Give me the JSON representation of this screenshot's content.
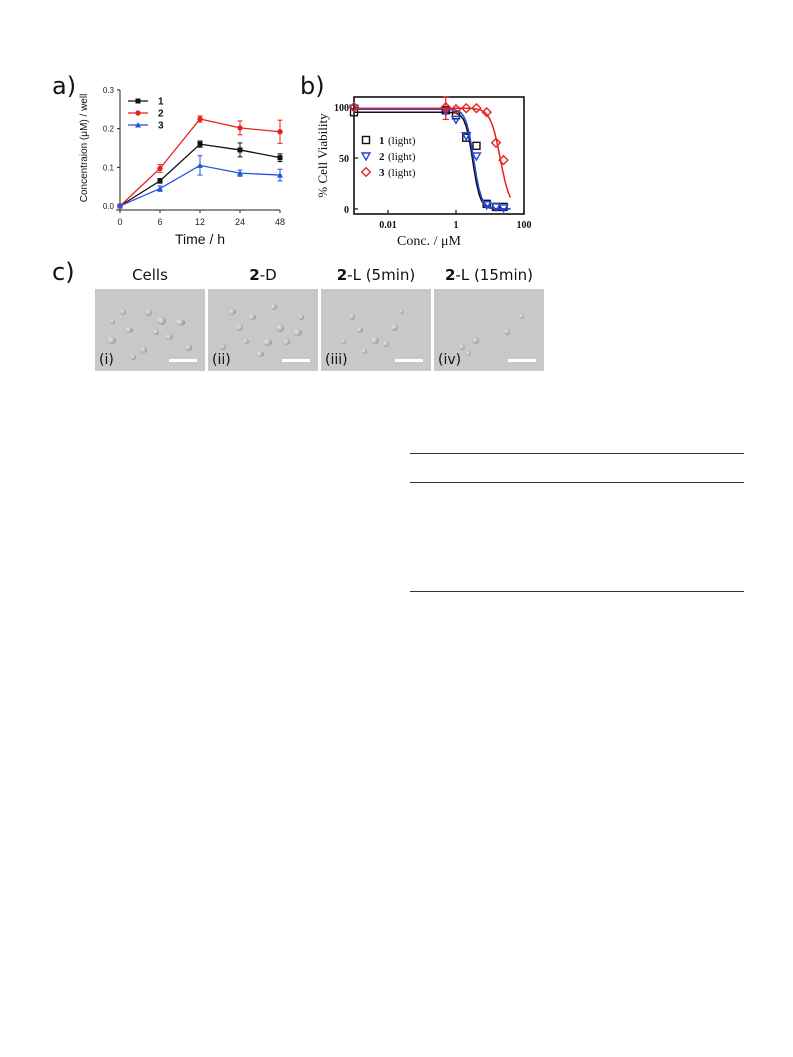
{
  "panels": {
    "a": "a)",
    "b": "b)",
    "c": "c)"
  },
  "chart_data": [
    {
      "type": "line",
      "xlabel": "Time / h",
      "ylabel": "Concentraion (μM) / well",
      "x": [
        0,
        6,
        12,
        24,
        48
      ],
      "x_ticks": [
        "0",
        "6",
        "12",
        "24",
        "48"
      ],
      "y_ticks": [
        "0.0",
        "0.1",
        "0.2",
        "0.3"
      ],
      "ylim": [
        0,
        0.3
      ],
      "legend_position": "top-left",
      "series": [
        {
          "name": "1",
          "color": "#111111",
          "values": [
            0.0,
            0.065,
            0.16,
            0.145,
            0.125
          ],
          "errors": [
            0.003,
            0.006,
            0.008,
            0.018,
            0.01
          ]
        },
        {
          "name": "2",
          "color": "#e8221e",
          "values": [
            0.0,
            0.097,
            0.225,
            0.202,
            0.192
          ],
          "errors": [
            0.003,
            0.01,
            0.008,
            0.018,
            0.03
          ]
        },
        {
          "name": "3",
          "color": "#2255dd",
          "values": [
            0.0,
            0.045,
            0.105,
            0.085,
            0.08
          ],
          "errors": [
            0.003,
            0.007,
            0.025,
            0.008,
            0.015
          ]
        }
      ]
    },
    {
      "type": "scatter",
      "xlabel": "Conc. / μM",
      "ylabel": "% Cell Viability",
      "x_scale": "log",
      "x_ticks": [
        "0.01",
        "1",
        "100"
      ],
      "y_ticks": [
        "0",
        "50",
        "100"
      ],
      "xlim": [
        0.001,
        100
      ],
      "ylim": [
        -5,
        110
      ],
      "legend_position": "center-left",
      "series": [
        {
          "name": "1",
          "suffix": "(light)",
          "marker": "square",
          "color": "#111111",
          "fit_color": "#111111",
          "x": [
            0.001,
            0.5,
            1,
            2,
            4,
            8,
            15,
            25
          ],
          "y": [
            95,
            97,
            92,
            70,
            62,
            5,
            2,
            2
          ]
        },
        {
          "name": "2",
          "suffix": "(light)",
          "marker": "triangle-down",
          "color": "#2244dd",
          "fit_color": "#2244dd",
          "x": [
            0.001,
            0.5,
            1,
            2,
            4,
            8,
            15,
            25
          ],
          "y": [
            99,
            96,
            88,
            72,
            52,
            4,
            2,
            1
          ]
        },
        {
          "name": "3",
          "suffix": "(light)",
          "marker": "diamond",
          "color": "#e8221e",
          "fit_color": "#e8221e",
          "x": [
            0.001,
            0.5,
            1,
            2,
            4,
            8,
            15,
            25
          ],
          "y": [
            100,
            100,
            98,
            99,
            99,
            95,
            65,
            48
          ]
        }
      ]
    }
  ],
  "micrographs": [
    {
      "bold": "",
      "title": "Cells",
      "label": "(i)"
    },
    {
      "bold": "2",
      "title": "-D",
      "label": "(ii)"
    },
    {
      "bold": "2",
      "title": "-L (5min)",
      "label": "(iii)"
    },
    {
      "bold": "2",
      "title": "-L (15min)",
      "label": "(iv)"
    }
  ]
}
